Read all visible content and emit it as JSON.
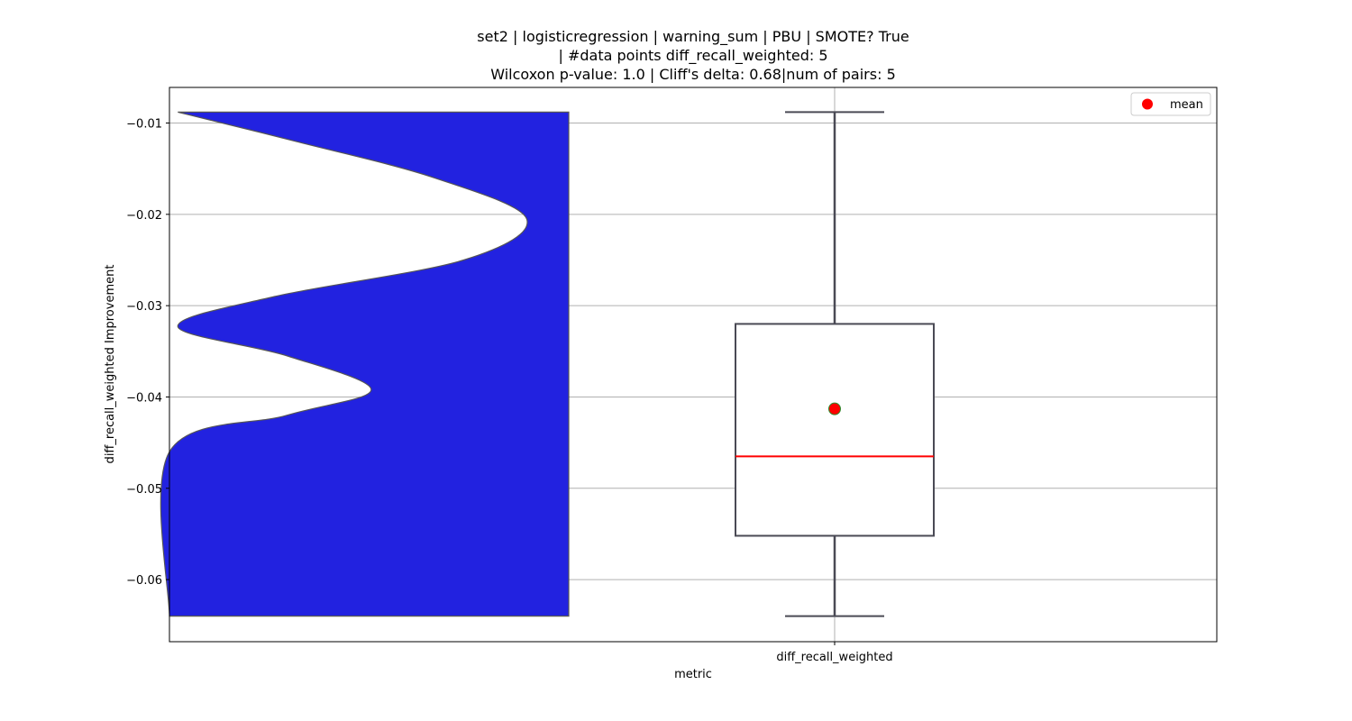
{
  "chart_data": {
    "type": "box",
    "title_lines": [
      "set2 | logisticregression | warning_sum | PBU | SMOTE? True",
      "| #data points diff_recall_weighted: 5",
      "Wilcoxon p-value: 1.0 | Cliff's delta: 0.68|num of pairs: 5"
    ],
    "xlabel": "metric",
    "ylabel": "diff_recall_weighted Improvement",
    "categories": [
      "diff_recall_weighted"
    ],
    "ylim": [
      -0.0668,
      -0.0061
    ],
    "yticks": [
      -0.01,
      -0.02,
      -0.03,
      -0.04,
      -0.05,
      -0.06
    ],
    "ytick_labels": [
      "−0.01",
      "−0.02",
      "−0.03",
      "−0.04",
      "−0.05",
      "−0.06"
    ],
    "grid": true,
    "legend": {
      "position": "top-right",
      "entries": [
        {
          "label": "mean",
          "color": "#ff0000"
        }
      ]
    },
    "box": {
      "min": -0.064,
      "q1": -0.0552,
      "median": -0.0465,
      "q3": -0.032,
      "max": -0.0088,
      "mean": -0.0413
    },
    "violin": {
      "color": "#2222e0",
      "outline": "#555555",
      "side": "left",
      "range": [
        -0.064,
        -0.0088
      ],
      "density_profile": [
        [
          -0.0088,
          0.02
        ],
        [
          -0.012,
          0.3
        ],
        [
          -0.016,
          0.63
        ],
        [
          -0.0205,
          0.85
        ],
        [
          -0.025,
          0.7
        ],
        [
          -0.029,
          0.25
        ],
        [
          -0.0323,
          0.02
        ],
        [
          -0.0355,
          0.28
        ],
        [
          -0.0392,
          0.48
        ],
        [
          -0.042,
          0.28
        ],
        [
          -0.046,
          0.0
        ],
        [
          -0.064,
          0.0
        ]
      ]
    },
    "colors": {
      "box_edge": "#4a4a55",
      "median": "#ff0000",
      "mean_fill": "#ff0000",
      "mean_edge": "#2e8b2e",
      "grid": "#b0b0b0"
    }
  }
}
